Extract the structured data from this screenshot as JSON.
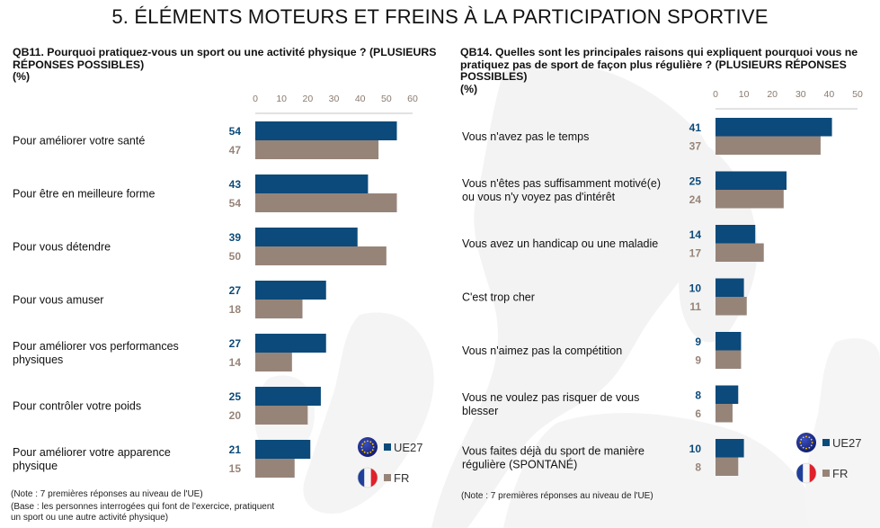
{
  "page": {
    "title": "5. ÉLÉMENTS MOTEURS ET FREINS À LA PARTICIPATION SPORTIVE"
  },
  "colors": {
    "ue27": "#0b4a7a",
    "fr": "#978479",
    "axis_text": "#8a7a70",
    "axis_line": "#d9d9d9",
    "watermark": "#f2f2f2"
  },
  "legend": {
    "ue27_label": "UE27",
    "fr_label": "FR",
    "ue27_icon": "eu-flag-icon",
    "fr_icon": "france-flag-icon"
  },
  "chart_data": [
    {
      "type": "bar",
      "orientation": "horizontal",
      "title_lines": [
        "QB11. Pourquoi pratiquez-vous un sport ou une activité physique ? (PLUSIEURS",
        "RÉPONSES POSSIBLES)",
        "(%)"
      ],
      "categories": [
        [
          "Pour améliorer votre santé"
        ],
        [
          "Pour être en meilleure forme"
        ],
        [
          "Pour vous détendre"
        ],
        [
          "Pour vous amuser"
        ],
        [
          "Pour améliorer vos performances",
          "physiques"
        ],
        [
          "Pour contrôler votre poids"
        ],
        [
          "Pour améliorer votre apparence",
          "physique"
        ]
      ],
      "series": [
        {
          "name": "UE27",
          "values": [
            54,
            43,
            39,
            27,
            27,
            25,
            21
          ]
        },
        {
          "name": "FR",
          "values": [
            47,
            54,
            50,
            18,
            14,
            20,
            15
          ]
        }
      ],
      "xlim": [
        0,
        60
      ],
      "xticks": [
        "0",
        "10",
        "20",
        "30",
        "40",
        "50",
        "60"
      ],
      "axis_position": "top",
      "legend_position": "bottom-right",
      "notes": [
        "(Note : 7 premières réponses au niveau de l'UE)",
        "(Base : les personnes interrogées qui font de l'exercice, pratiquent",
        "un sport ou une autre activité physique)"
      ]
    },
    {
      "type": "bar",
      "orientation": "horizontal",
      "title_lines": [
        "QB14. Quelles sont les principales raisons qui expliquent pourquoi vous ne",
        "pratiquez pas de sport de façon plus régulière ? (PLUSIEURS RÉPONSES",
        "POSSIBLES)",
        "(%)"
      ],
      "categories": [
        [
          "Vous n'avez pas le temps"
        ],
        [
          "Vous n'êtes pas suffisamment motivé(e)",
          "ou vous n'y voyez pas d'intérêt"
        ],
        [
          "Vous avez un handicap ou une maladie"
        ],
        [
          "C'est trop cher"
        ],
        [
          "Vous n'aimez pas la compétition"
        ],
        [
          "Vous ne voulez pas risquer de vous",
          "blesser"
        ],
        [
          "Vous faites déjà du sport de manière",
          "régulière  (SPONTANÉ)"
        ]
      ],
      "series": [
        {
          "name": "UE27",
          "values": [
            41,
            25,
            14,
            10,
            9,
            8,
            10
          ]
        },
        {
          "name": "FR",
          "values": [
            37,
            24,
            17,
            11,
            9,
            6,
            8
          ]
        }
      ],
      "xlim": [
        0,
        50
      ],
      "xticks": [
        "0",
        "10",
        "20",
        "30",
        "40",
        "50"
      ],
      "axis_position": "top",
      "legend_position": "bottom-right",
      "notes": [
        "(Note : 7 premières réponses au niveau de l'UE)"
      ]
    }
  ]
}
